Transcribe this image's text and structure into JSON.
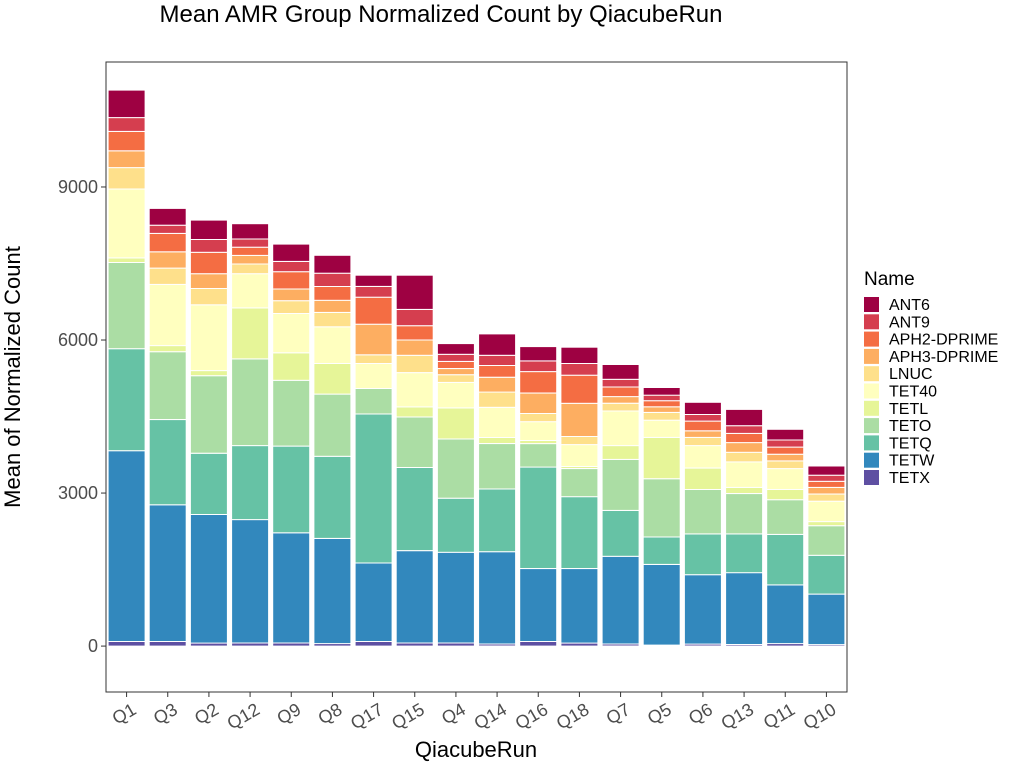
{
  "chart_data": {
    "type": "bar",
    "stacked": true,
    "title": "Mean AMR Group Normalized Count by QiacubeRun",
    "xlabel": "QiacubeRun",
    "ylabel": "Mean of Normalized Count",
    "ylim": [
      -900,
      11450
    ],
    "yticks": [
      0,
      3000,
      6000,
      9000
    ],
    "grid": false,
    "legend_title": "Name",
    "legend_position": "right",
    "categories": [
      "Q1",
      "Q3",
      "Q2",
      "Q12",
      "Q9",
      "Q8",
      "Q17",
      "Q15",
      "Q4",
      "Q14",
      "Q16",
      "Q18",
      "Q7",
      "Q5",
      "Q6",
      "Q13",
      "Q11",
      "Q10"
    ],
    "series": [
      {
        "name": "TETX",
        "color": "#5E4FA2",
        "values": [
          90,
          90,
          60,
          60,
          60,
          50,
          90,
          60,
          60,
          40,
          90,
          60,
          40,
          20,
          40,
          30,
          50,
          30
        ]
      },
      {
        "name": "TETW",
        "color": "#3288BD",
        "values": [
          3740,
          2680,
          2520,
          2420,
          2160,
          2060,
          1540,
          1810,
          1780,
          1810,
          1430,
          1460,
          1720,
          1580,
          1360,
          1410,
          1150,
          990
        ]
      },
      {
        "name": "TETQ",
        "color": "#66C2A5",
        "values": [
          2000,
          1670,
          1200,
          1450,
          1700,
          1610,
          2920,
          1630,
          1060,
          1230,
          1990,
          1410,
          900,
          540,
          800,
          760,
          990,
          760
        ]
      },
      {
        "name": "TETO",
        "color": "#ABDDA4",
        "values": [
          1690,
          1330,
          1520,
          1700,
          1290,
          1220,
          500,
          990,
          1160,
          890,
          460,
          550,
          1000,
          1140,
          870,
          790,
          680,
          580
        ]
      },
      {
        "name": "TETL",
        "color": "#E6F598",
        "values": [
          90,
          120,
          100,
          1000,
          540,
          600,
          0,
          200,
          610,
          120,
          60,
          40,
          270,
          810,
          420,
          120,
          200,
          80
        ]
      },
      {
        "name": "TET40",
        "color": "#FFFFBF",
        "values": [
          1350,
          1200,
          1290,
          670,
          770,
          720,
          490,
          670,
          500,
          590,
          370,
          430,
          680,
          340,
          440,
          500,
          410,
          400
        ]
      },
      {
        "name": "LNUC",
        "color": "#FEE08B",
        "values": [
          420,
          320,
          320,
          190,
          250,
          280,
          170,
          340,
          150,
          300,
          160,
          160,
          150,
          150,
          160,
          190,
          150,
          140
        ]
      },
      {
        "name": "APH3-DPRIME",
        "color": "#FDAE61",
        "values": [
          330,
          320,
          290,
          170,
          230,
          240,
          600,
          300,
          120,
          290,
          400,
          650,
          130,
          110,
          130,
          190,
          130,
          130
        ]
      },
      {
        "name": "APH2-DPRIME",
        "color": "#F46D43",
        "values": [
          380,
          360,
          420,
          160,
          340,
          270,
          530,
          280,
          140,
          230,
          420,
          550,
          190,
          120,
          190,
          180,
          140,
          120
        ]
      },
      {
        "name": "ANT9",
        "color": "#D53E4F",
        "values": [
          270,
          160,
          250,
          160,
          200,
          260,
          210,
          320,
          140,
          200,
          210,
          230,
          150,
          110,
          130,
          150,
          140,
          120
        ]
      },
      {
        "name": "ANT6",
        "color": "#9E0142",
        "values": [
          540,
          330,
          380,
          300,
          340,
          350,
          220,
          670,
          210,
          420,
          280,
          320,
          290,
          150,
          240,
          320,
          210,
          180
        ]
      }
    ]
  }
}
